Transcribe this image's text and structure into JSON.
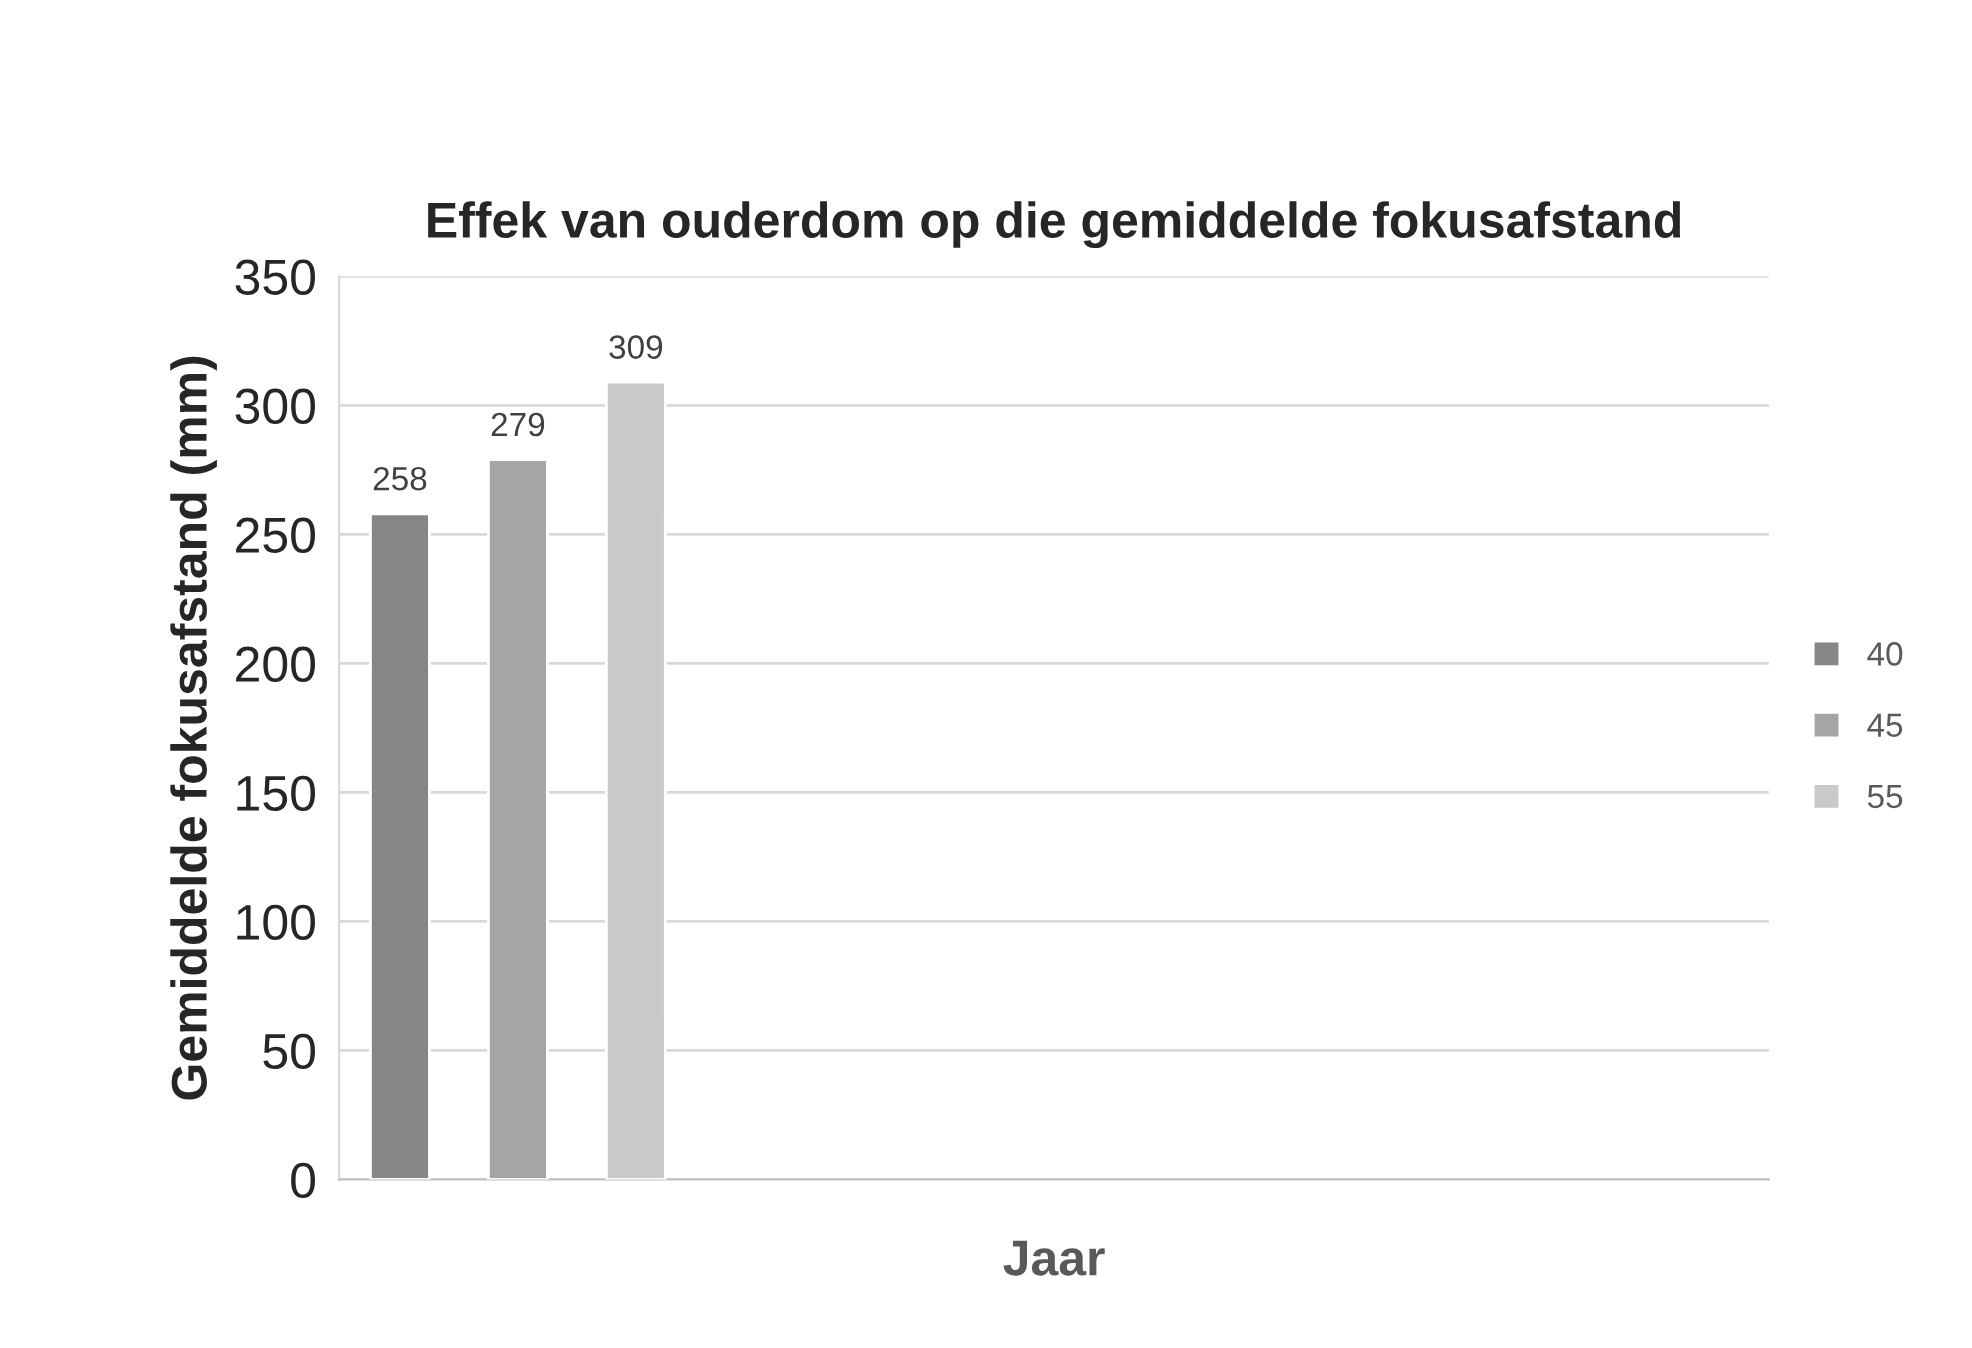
{
  "chart_data": {
    "type": "bar",
    "title": "Effek van ouderdom op die gemiddelde fokusafstand",
    "xlabel": "Jaar",
    "ylabel": "Gemiddelde fokusafstand (mm)",
    "categories": [
      null,
      null,
      null,
      null
    ],
    "series": [
      {
        "name": "40",
        "color": "#868686",
        "values": [
          258,
          null,
          null,
          null
        ]
      },
      {
        "name": "45",
        "color": "#a5a5a5",
        "values": [
          279,
          null,
          null,
          null
        ]
      },
      {
        "name": "55",
        "color": "#c9c9c9",
        "values": [
          309,
          null,
          null,
          null
        ]
      }
    ],
    "ylim": [
      0,
      350
    ],
    "yticks": [
      0,
      50,
      100,
      150,
      200,
      250,
      300,
      350
    ],
    "grid": "y",
    "legend": "right",
    "data_labels": true
  }
}
